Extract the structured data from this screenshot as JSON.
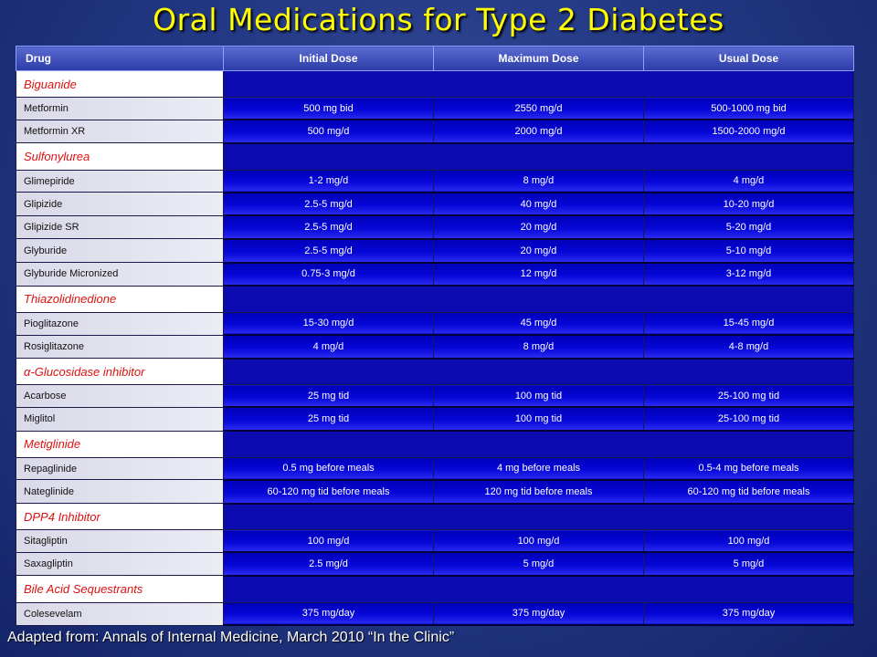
{
  "title": "Oral Medications for Type 2 Diabetes",
  "columns": [
    "Drug",
    "Initial Dose",
    "Maximum Dose",
    "Usual Dose"
  ],
  "rows": [
    {
      "category": "Biguanide"
    },
    {
      "drug": "Metformin",
      "initial": "500 mg bid",
      "max": "2550 mg/d",
      "usual": "500-1000  mg bid"
    },
    {
      "drug": "Metformin XR",
      "initial": "500 mg/d",
      "max": "2000 mg/d",
      "usual": "1500-2000  mg/d"
    },
    {
      "category": "Sulfonylurea"
    },
    {
      "drug": "Glimepiride",
      "initial": "1-2 mg/d",
      "max": "8 mg/d",
      "usual": "4 mg/d"
    },
    {
      "drug": "Glipizide",
      "initial": "2.5-5 mg/d",
      "max": "40 mg/d",
      "usual": "10-20 mg/d"
    },
    {
      "drug": "Glipizide SR",
      "initial": "2.5-5 mg/d",
      "max": "20 mg/d",
      "usual": "5-20 mg/d"
    },
    {
      "drug": "Glyburide",
      "initial": "2.5-5 mg/d",
      "max": "20 mg/d",
      "usual": "5-10 mg/d"
    },
    {
      "drug": "Glyburide Micronized",
      "initial": "0.75-3 mg/d",
      "max": "12 mg/d",
      "usual": "3-12 mg/d"
    },
    {
      "category": "Thiazolidinedione"
    },
    {
      "drug": "Pioglitazone",
      "initial": "15-30 mg/d",
      "max": "45 mg/d",
      "usual": "15-45 mg/d"
    },
    {
      "drug": "Rosiglitazone",
      "initial": "4 mg/d",
      "max": "8 mg/d",
      "usual": "4-8 mg/d"
    },
    {
      "category": "α-Glucosidase inhibitor"
    },
    {
      "drug": "Acarbose",
      "initial": "25 mg tid",
      "max": "100 mg tid",
      "usual": "25-100  mg tid"
    },
    {
      "drug": "Miglitol",
      "initial": "25 mg tid",
      "max": "100 mg tid",
      "usual": "25-100  mg tid"
    },
    {
      "category": "Metiglinide"
    },
    {
      "drug": "Repaglinide",
      "initial": "0.5 mg before meals",
      "max": "4 mg before meals",
      "usual": "0.5-4  mg before meals"
    },
    {
      "drug": "Nateglinide",
      "initial": "60-120  mg tid before meals",
      "max": "120 mg tid before meals",
      "usual": "60-120  mg tid before meals"
    },
    {
      "category": "DPP4 Inhibitor"
    },
    {
      "drug": "Sitagliptin",
      "initial": "100 mg/d",
      "max": "100 mg/d",
      "usual": "100 mg/d"
    },
    {
      "drug": "Saxagliptin",
      "initial": "2.5 mg/d",
      "max": "5 mg/d",
      "usual": "5 mg/d"
    },
    {
      "category": "Bile Acid Sequestrants"
    },
    {
      "drug": "Colesevelam",
      "initial": "375 mg/day",
      "max": "375 mg/day",
      "usual": "375 mg/day"
    }
  ],
  "footer": "Adapted from: Annals of Internal Medicine, March 2010 “In the Clinic”",
  "colors": {
    "title": "#ffff00",
    "category_text": "#dd1111",
    "value_cell": "#0606d8",
    "background": "#243a86"
  }
}
